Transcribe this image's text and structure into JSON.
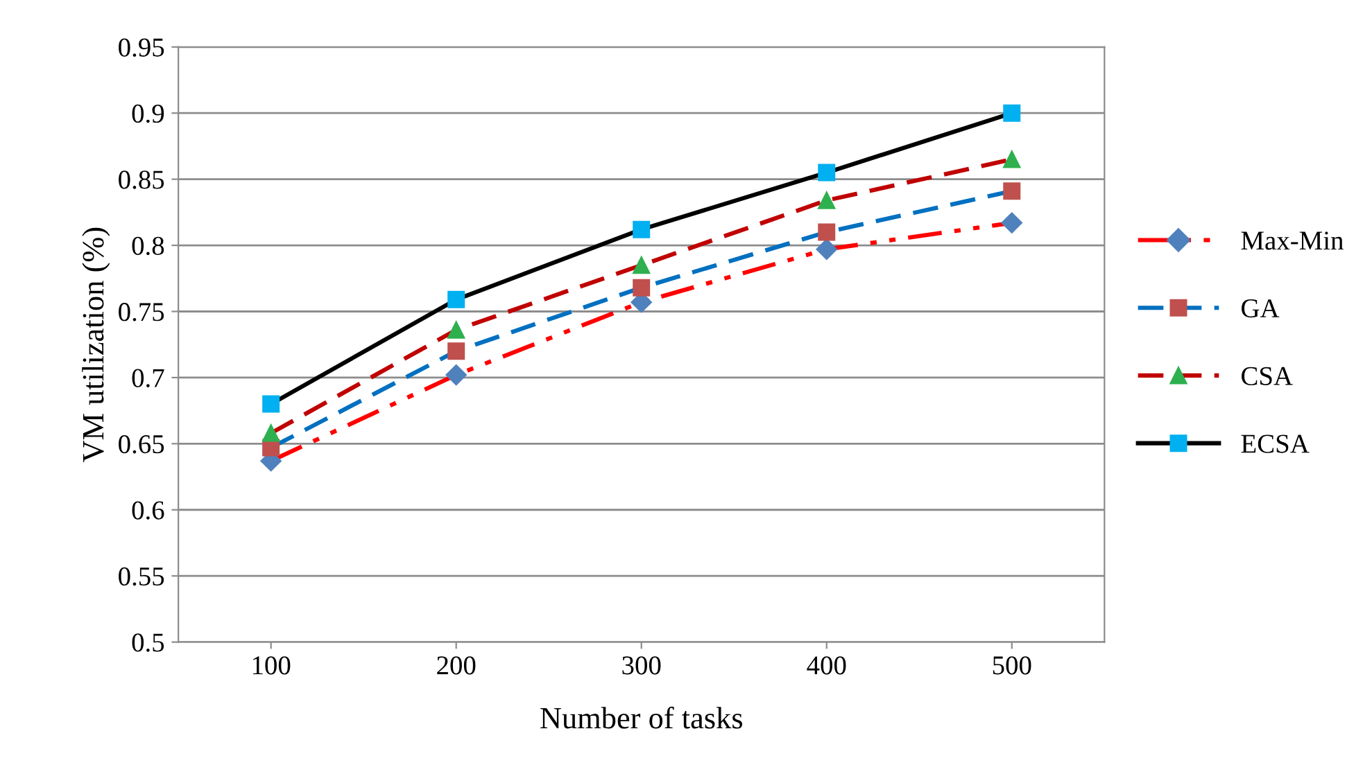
{
  "chart_data": {
    "type": "line",
    "xlabel": "Number of tasks",
    "ylabel": "VM utilization (%)",
    "categories": [
      "100",
      "200",
      "300",
      "400",
      "500"
    ],
    "ylim": [
      0.5,
      0.95
    ],
    "yticks": [
      0.5,
      0.55,
      0.6,
      0.65,
      0.7,
      0.75,
      0.8,
      0.85,
      0.9,
      0.95
    ],
    "grid": "y",
    "legend": "right",
    "series": [
      {
        "name": "Max-Min",
        "color": "#ff0000",
        "colors": [
          "#4f81bd",
          "#4f81bd",
          "#4f81bd",
          "#4f81bd",
          "#4f81bd"
        ],
        "marker": "diamond",
        "line_style": "dashdotdot",
        "values": [
          0.637,
          0.702,
          0.757,
          0.797,
          0.817
        ]
      },
      {
        "name": "GA",
        "color": "#0070c0",
        "colors": [
          "#c0504d",
          "#c0504d",
          "#c0504d",
          "#c0504d",
          "#c0504d"
        ],
        "marker": "square",
        "line_style": "dashed",
        "values": [
          0.647,
          0.72,
          0.768,
          0.81,
          0.841
        ]
      },
      {
        "name": "CSA",
        "color": "#c00000",
        "colors": [
          "#2eb04f",
          "#2eb04f",
          "#2eb04f",
          "#2eb04f",
          "#2eb04f"
        ],
        "marker": "triangle",
        "line_style": "dashed",
        "values": [
          0.658,
          0.736,
          0.785,
          0.834,
          0.865
        ]
      },
      {
        "name": "ECSA",
        "color": "#000000",
        "colors": [
          "#00b0f0",
          "#00b0f0",
          "#00b0f0",
          "#00b0f0",
          "#00b0f0"
        ],
        "marker": "square",
        "line_style": "solid",
        "values": [
          0.68,
          0.759,
          0.812,
          0.855,
          0.9
        ]
      }
    ]
  }
}
